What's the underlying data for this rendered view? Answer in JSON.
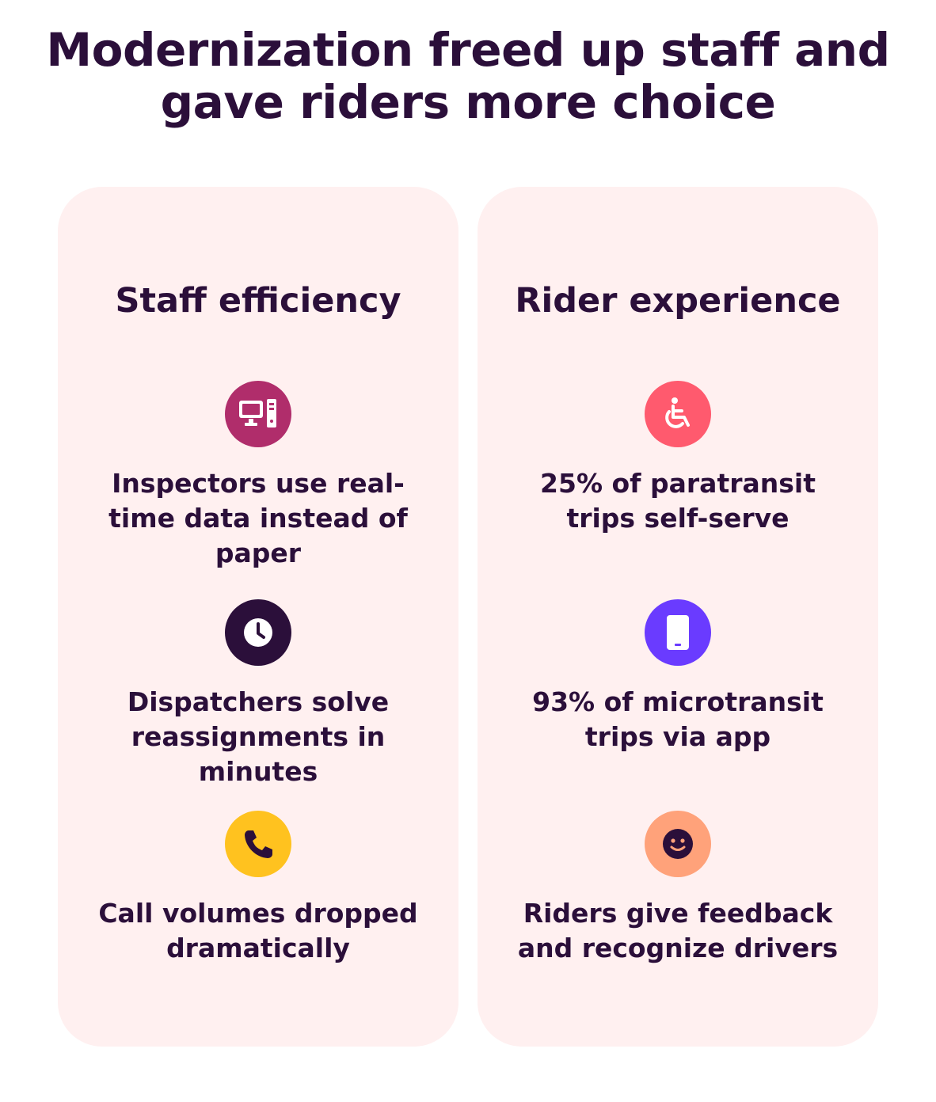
{
  "title_line1": "Modernization freed up staff and",
  "title_line2": "gave riders more choice",
  "staff": {
    "heading": "Staff efficiency",
    "items": [
      {
        "icon": "desktop-computer-icon",
        "color": "#b02d6b",
        "text": "Inspectors use real-time data instead of paper"
      },
      {
        "icon": "clock-icon",
        "color": "#2b0f3a",
        "text": "Dispatchers solve reassignments in minutes"
      },
      {
        "icon": "phone-icon",
        "color": "#ffc21f",
        "text": "Call volumes dropped dramatically"
      }
    ]
  },
  "rider": {
    "heading": "Rider experience",
    "items": [
      {
        "icon": "wheelchair-icon",
        "color": "#ff5a6e",
        "text": "25% of paratransit trips self-serve"
      },
      {
        "icon": "mobile-phone-icon",
        "color": "#6a3bff",
        "text": "93% of microtransit trips via app"
      },
      {
        "icon": "smiley-face-icon",
        "color": "#ffa27a",
        "text": "Riders give feedback and recognize drivers"
      }
    ]
  }
}
